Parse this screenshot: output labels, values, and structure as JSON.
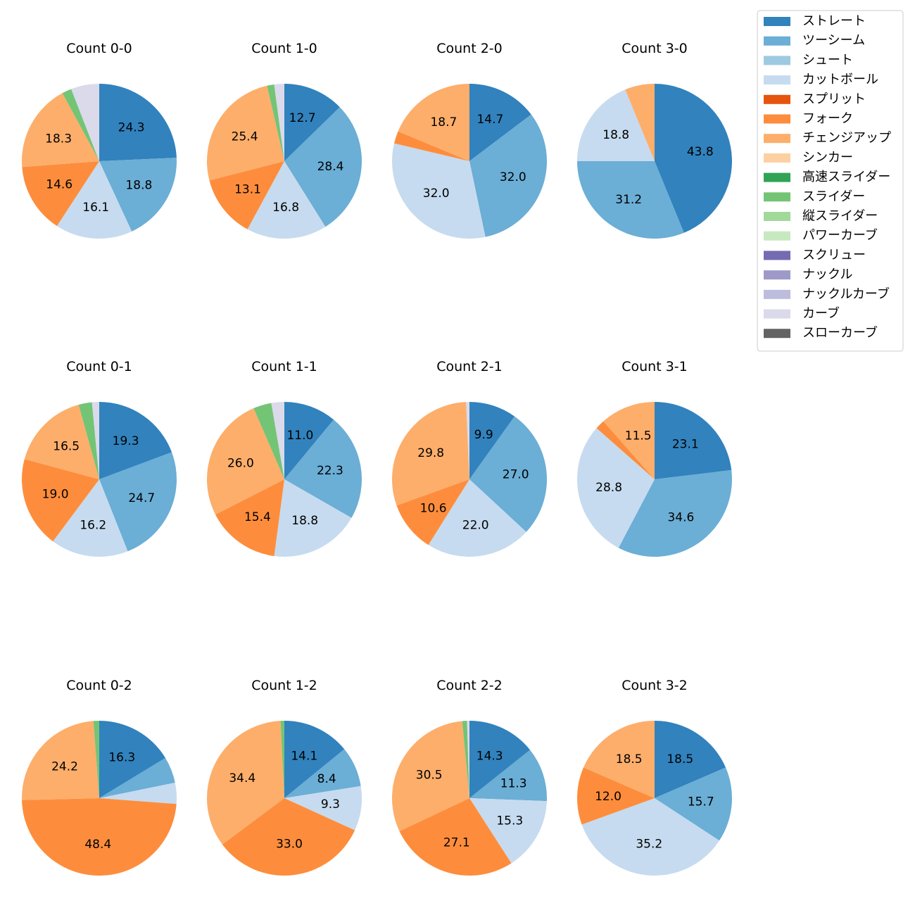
{
  "chart_data": {
    "type": "pie",
    "legend": {
      "placement": "top-right",
      "entries": [
        {
          "name": "ストレート",
          "color": "#3182bd"
        },
        {
          "name": "ツーシーム",
          "color": "#6baed6"
        },
        {
          "name": "シュート",
          "color": "#9ecae1"
        },
        {
          "name": "カットボール",
          "color": "#c6dbef"
        },
        {
          "name": "スプリット",
          "color": "#e6550d"
        },
        {
          "name": "フォーク",
          "color": "#fd8d3c"
        },
        {
          "name": "チェンジアップ",
          "color": "#fdae6b"
        },
        {
          "name": "シンカー",
          "color": "#fdd0a2"
        },
        {
          "name": "高速スライダー",
          "color": "#31a354"
        },
        {
          "name": "スライダー",
          "color": "#74c476"
        },
        {
          "name": "縦スライダー",
          "color": "#a1d99b"
        },
        {
          "name": "パワーカーブ",
          "color": "#c7e9c0"
        },
        {
          "name": "スクリュー",
          "color": "#756bb1"
        },
        {
          "name": "ナックル",
          "color": "#9e9ac8"
        },
        {
          "name": "ナックルカーブ",
          "color": "#bcbddc"
        },
        {
          "name": "カーブ",
          "color": "#dadaeb"
        },
        {
          "name": "スローカーブ",
          "color": "#636363"
        }
      ]
    },
    "charts": [
      {
        "title": "Count 0-0",
        "slices": [
          {
            "pitch": "ストレート",
            "value": 24.3,
            "label": "24.3"
          },
          {
            "pitch": "ツーシーム",
            "value": 18.8,
            "label": "18.8"
          },
          {
            "pitch": "カットボール",
            "value": 16.1,
            "label": "16.1"
          },
          {
            "pitch": "フォーク",
            "value": 14.6,
            "label": "14.6"
          },
          {
            "pitch": "チェンジアップ",
            "value": 18.3,
            "label": "18.3"
          },
          {
            "pitch": "スライダー",
            "value": 2.0,
            "label": ""
          },
          {
            "pitch": "カーブ",
            "value": 5.9,
            "label": ""
          }
        ]
      },
      {
        "title": "Count 1-0",
        "slices": [
          {
            "pitch": "ストレート",
            "value": 12.7,
            "label": "12.7"
          },
          {
            "pitch": "ツーシーム",
            "value": 28.4,
            "label": "28.4"
          },
          {
            "pitch": "カットボール",
            "value": 16.8,
            "label": "16.8"
          },
          {
            "pitch": "フォーク",
            "value": 13.1,
            "label": "13.1"
          },
          {
            "pitch": "チェンジアップ",
            "value": 25.4,
            "label": "25.4"
          },
          {
            "pitch": "スライダー",
            "value": 1.5,
            "label": ""
          },
          {
            "pitch": "カーブ",
            "value": 2.1,
            "label": ""
          }
        ]
      },
      {
        "title": "Count 2-0",
        "slices": [
          {
            "pitch": "ストレート",
            "value": 14.7,
            "label": "14.7"
          },
          {
            "pitch": "ツーシーム",
            "value": 32.0,
            "label": "32.0"
          },
          {
            "pitch": "カットボール",
            "value": 32.0,
            "label": "32.0"
          },
          {
            "pitch": "フォーク",
            "value": 2.6,
            "label": ""
          },
          {
            "pitch": "チェンジアップ",
            "value": 18.7,
            "label": "18.7"
          }
        ]
      },
      {
        "title": "Count 3-0",
        "slices": [
          {
            "pitch": "ストレート",
            "value": 43.8,
            "label": "43.8"
          },
          {
            "pitch": "ツーシーム",
            "value": 31.2,
            "label": "31.2"
          },
          {
            "pitch": "カットボール",
            "value": 18.8,
            "label": "18.8"
          },
          {
            "pitch": "チェンジアップ",
            "value": 6.2,
            "label": ""
          }
        ]
      },
      {
        "title": "Count 0-1",
        "slices": [
          {
            "pitch": "ストレート",
            "value": 19.3,
            "label": "19.3"
          },
          {
            "pitch": "ツーシーム",
            "value": 24.7,
            "label": "24.7"
          },
          {
            "pitch": "カットボール",
            "value": 16.2,
            "label": "16.2"
          },
          {
            "pitch": "フォーク",
            "value": 19.0,
            "label": "19.0"
          },
          {
            "pitch": "チェンジアップ",
            "value": 16.5,
            "label": "16.5"
          },
          {
            "pitch": "スライダー",
            "value": 2.8,
            "label": ""
          },
          {
            "pitch": "カーブ",
            "value": 1.5,
            "label": ""
          }
        ]
      },
      {
        "title": "Count 1-1",
        "slices": [
          {
            "pitch": "ストレート",
            "value": 11.0,
            "label": "11.0"
          },
          {
            "pitch": "ツーシーム",
            "value": 22.3,
            "label": "22.3"
          },
          {
            "pitch": "カットボール",
            "value": 18.8,
            "label": "18.8"
          },
          {
            "pitch": "フォーク",
            "value": 15.4,
            "label": "15.4"
          },
          {
            "pitch": "チェンジアップ",
            "value": 26.0,
            "label": "26.0"
          },
          {
            "pitch": "スライダー",
            "value": 3.8,
            "label": ""
          },
          {
            "pitch": "カーブ",
            "value": 2.7,
            "label": ""
          }
        ]
      },
      {
        "title": "Count 2-1",
        "slices": [
          {
            "pitch": "ストレート",
            "value": 9.9,
            "label": "9.9"
          },
          {
            "pitch": "ツーシーム",
            "value": 27.0,
            "label": "27.0"
          },
          {
            "pitch": "カットボール",
            "value": 22.0,
            "label": "22.0"
          },
          {
            "pitch": "フォーク",
            "value": 10.6,
            "label": "10.6"
          },
          {
            "pitch": "チェンジアップ",
            "value": 29.8,
            "label": "29.8"
          },
          {
            "pitch": "カーブ",
            "value": 0.7,
            "label": ""
          }
        ]
      },
      {
        "title": "Count 3-1",
        "slices": [
          {
            "pitch": "ストレート",
            "value": 23.1,
            "label": "23.1"
          },
          {
            "pitch": "ツーシーム",
            "value": 34.6,
            "label": "34.6"
          },
          {
            "pitch": "カットボール",
            "value": 28.8,
            "label": "28.8"
          },
          {
            "pitch": "フォーク",
            "value": 2.0,
            "label": ""
          },
          {
            "pitch": "チェンジアップ",
            "value": 11.5,
            "label": "11.5"
          }
        ]
      },
      {
        "title": "Count 0-2",
        "slices": [
          {
            "pitch": "ストレート",
            "value": 16.3,
            "label": "16.3"
          },
          {
            "pitch": "ツーシーム",
            "value": 5.5,
            "label": ""
          },
          {
            "pitch": "カットボール",
            "value": 4.4,
            "label": ""
          },
          {
            "pitch": "フォーク",
            "value": 48.4,
            "label": "48.4"
          },
          {
            "pitch": "チェンジアップ",
            "value": 24.2,
            "label": "24.2"
          },
          {
            "pitch": "スライダー",
            "value": 1.2,
            "label": ""
          }
        ]
      },
      {
        "title": "Count 1-2",
        "slices": [
          {
            "pitch": "ストレート",
            "value": 14.1,
            "label": "14.1"
          },
          {
            "pitch": "ツーシーム",
            "value": 8.4,
            "label": "8.4"
          },
          {
            "pitch": "カットボール",
            "value": 9.3,
            "label": "9.3"
          },
          {
            "pitch": "フォーク",
            "value": 33.0,
            "label": "33.0"
          },
          {
            "pitch": "チェンジアップ",
            "value": 34.4,
            "label": "34.4"
          },
          {
            "pitch": "スライダー",
            "value": 0.8,
            "label": ""
          }
        ]
      },
      {
        "title": "Count 2-2",
        "slices": [
          {
            "pitch": "ストレート",
            "value": 14.3,
            "label": "14.3"
          },
          {
            "pitch": "ツーシーム",
            "value": 11.3,
            "label": "11.3"
          },
          {
            "pitch": "カットボール",
            "value": 15.3,
            "label": "15.3"
          },
          {
            "pitch": "フォーク",
            "value": 27.1,
            "label": "27.1"
          },
          {
            "pitch": "チェンジアップ",
            "value": 30.5,
            "label": "30.5"
          },
          {
            "pitch": "スライダー",
            "value": 1.0,
            "label": ""
          },
          {
            "pitch": "カーブ",
            "value": 0.5,
            "label": ""
          }
        ]
      },
      {
        "title": "Count 3-2",
        "slices": [
          {
            "pitch": "ストレート",
            "value": 18.5,
            "label": "18.5"
          },
          {
            "pitch": "ツーシーム",
            "value": 15.7,
            "label": "15.7"
          },
          {
            "pitch": "カットボール",
            "value": 35.2,
            "label": "35.2"
          },
          {
            "pitch": "フォーク",
            "value": 12.0,
            "label": "12.0"
          },
          {
            "pitch": "チェンジアップ",
            "value": 18.5,
            "label": "18.5"
          }
        ]
      }
    ]
  }
}
